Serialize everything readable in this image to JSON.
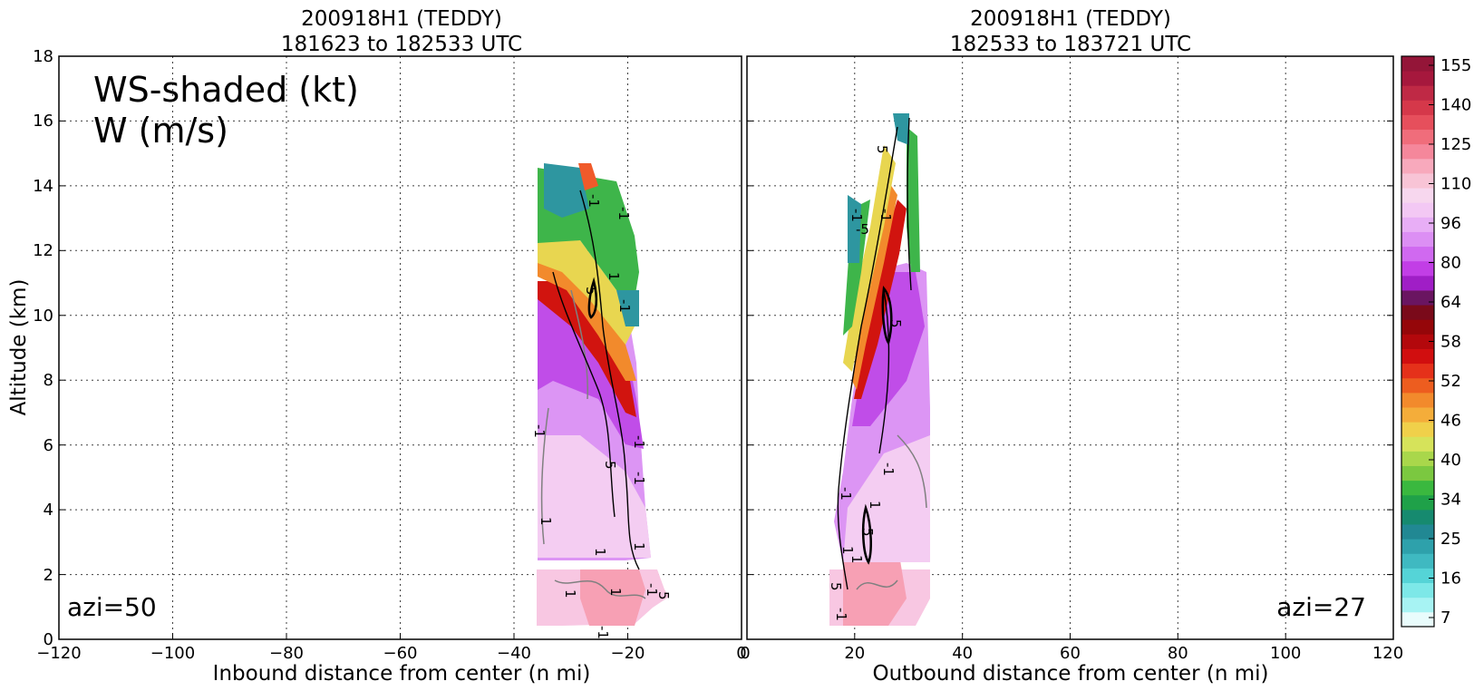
{
  "chart_data": [
    {
      "type": "heatmap",
      "title": "200918H1 (TEDDY)",
      "subtitle": "181623 to 182533 UTC",
      "xlabel": "Inbound distance from center (n mi)",
      "ylabel": "Altitude (km)",
      "xlim": [
        -120,
        0
      ],
      "ylim": [
        0,
        18
      ],
      "xticks": [
        "−120",
        "−100",
        "−80",
        "−60",
        "−40",
        "−20",
        "0"
      ],
      "yticks": [
        "0",
        "2",
        "4",
        "6",
        "8",
        "10",
        "12",
        "14",
        "16",
        "18"
      ],
      "grid": true,
      "annotations": [
        "WS-shaded (kt)",
        "W (m/s)",
        "azi=50"
      ],
      "contour_labels": [
        "-1",
        "-1",
        "1",
        "-1",
        "-1",
        "-1",
        "5",
        "1",
        "1",
        "-1",
        "5",
        "1",
        "1",
        "-1",
        "1",
        "-1",
        "5"
      ],
      "data_extent": {
        "x": [
          -36,
          -14
        ],
        "y": [
          0.3,
          14.7
        ]
      },
      "notes": "Wind speed shaded: pink 96-125 kt below 2 km, purple 64-96 kt from 3 to 10 km, red maximum 52-64 kt near 8-11 km around -25 n mi, yellow/green/teal 16-46 kt above 11 km."
    },
    {
      "type": "heatmap",
      "title": "200918H1 (TEDDY)",
      "subtitle": "182533 to 183721 UTC",
      "xlabel": "Outbound distance from center (n mi)",
      "ylabel": "",
      "xlim": [
        0,
        120
      ],
      "ylim": [
        0,
        18
      ],
      "xticks": [
        "0",
        "20",
        "40",
        "60",
        "80",
        "100",
        "120"
      ],
      "grid": true,
      "annotations": [
        "azi=27"
      ],
      "contour_labels": [
        "5",
        "-1",
        "-5",
        "-1",
        "-1",
        "5",
        "-1",
        "1",
        "5",
        "1",
        "1",
        "5",
        "-1"
      ],
      "data_extent": {
        "x": [
          15,
          34
        ],
        "y": [
          0.3,
          16.3
        ]
      },
      "notes": "Wind speed shaded: pink near surface, purple 64-96 kt between 3 and 10 km, red band tilting outward from 6 km at 20 n mi to 14 km at 27 n mi, yellow/green/teal above."
    }
  ],
  "colorbar": {
    "label_values": [
      "7",
      "16",
      "25",
      "34",
      "40",
      "46",
      "52",
      "58",
      "64",
      "80",
      "96",
      "110",
      "125",
      "140",
      "155"
    ],
    "colors_bottom_to_top": [
      "#e9fcfc",
      "#a7f3f3",
      "#7de8e8",
      "#55d4d7",
      "#3fb9c1",
      "#2ea1ab",
      "#218893",
      "#168a6f",
      "#1fa149",
      "#3ab83f",
      "#7bc840",
      "#a9d74b",
      "#d6e35a",
      "#f0d04a",
      "#f4ad3a",
      "#f28a2c",
      "#ed5d1f",
      "#e5311a",
      "#d10e0f",
      "#b3080c",
      "#950609",
      "#7a0a1a",
      "#6a1561",
      "#a01ec6",
      "#c23ee6",
      "#d069f0",
      "#dc8ff4",
      "#e8aef6",
      "#f3c8f4",
      "#f7d7ee",
      "#f8c4d6",
      "#f8a9bc",
      "#f5879b",
      "#f06d7b",
      "#e64f5c",
      "#d5384a",
      "#bf2945",
      "#a6183d",
      "#941538"
    ]
  }
}
